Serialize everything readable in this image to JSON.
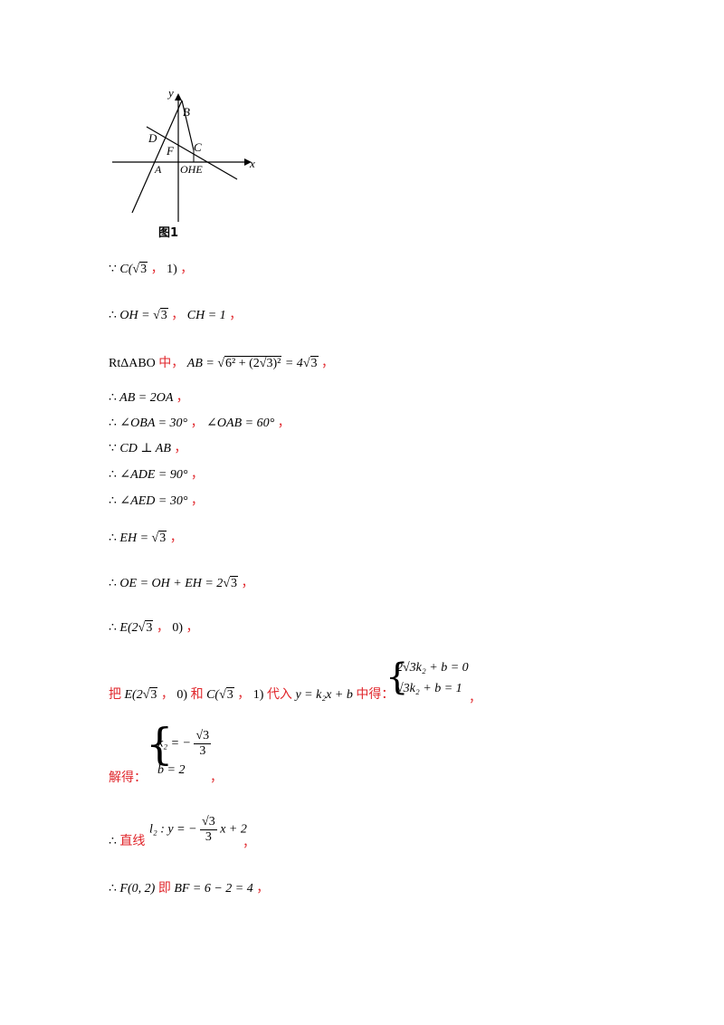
{
  "figure": {
    "caption": "图1",
    "labels": {
      "y": "y",
      "x": "x",
      "B": "B",
      "D": "D",
      "F": "F",
      "C": "C",
      "A": "A",
      "OHE": "OHE"
    }
  },
  "lines": {
    "l1": {
      "because": "∵",
      "expr_a": "C(",
      "sqrt": "3",
      "sep": "，",
      "expr_b": "1)",
      "end": "，"
    },
    "l2": {
      "therefore": "∴",
      "expr_a": "OH = ",
      "sqrt": "3",
      "sep": "，",
      "expr_b": "CH = 1",
      "end": "，"
    },
    "l3": {
      "prefix": "RtΔABO",
      "red": "中，",
      "expr_a": "AB = ",
      "inner": "6² + (2√3)²",
      "expr_b": " = 4",
      "sqrt": "3",
      "end": "，"
    },
    "l4": {
      "therefore": "∴",
      "expr": "AB = 2OA",
      "end": "，"
    },
    "l5": {
      "therefore": "∴",
      "expr_a": "∠OBA = 30°",
      "sep": "，",
      "expr_b": "∠OAB = 60°",
      "end": "，"
    },
    "l6": {
      "because": "∵",
      "expr": "CD ⊥ AB",
      "end": "，"
    },
    "l7": {
      "therefore": "∴",
      "expr": "∠ADE = 90°",
      "end": "，"
    },
    "l8": {
      "therefore": "∴",
      "expr": "∠AED = 30°",
      "end": "，"
    },
    "l9": {
      "therefore": "∴",
      "expr_a": "EH = ",
      "sqrt": "3",
      "end": "，"
    },
    "l10": {
      "therefore": "∴",
      "expr_a": "OE = OH + EH = 2",
      "sqrt": "3",
      "end": "，"
    },
    "l11": {
      "therefore": "∴",
      "expr_a": "E(2",
      "sqrt": "3",
      "sep": "，",
      "expr_b": "0)",
      "end": "，"
    },
    "l12": {
      "red_a": "把",
      "e_a": "E(2",
      "e_sqrt": "3",
      "e_sep": "，",
      "e_b": "0)",
      "red_b": "和",
      "c_a": "C(",
      "c_sqrt": "3",
      "c_sep": "，",
      "c_b": "1)",
      "red_c": "代入",
      "eq": "y = k₂x + b",
      "red_d": "中得：",
      "sys1": "2√3k₂ + b = 0",
      "sys2": "√3k₂ + b = 1",
      "end": "，"
    },
    "l13": {
      "red": "解得：",
      "sys1_a": "k₂ = −",
      "sys1_num": "√3",
      "sys1_den": "3",
      "sys2": "b = 2",
      "end": "，"
    },
    "l14": {
      "therefore": "∴",
      "red": "直线",
      "expr_a": "l₂ : y = −",
      "num": "√3",
      "den": "3",
      "expr_b": "x + 2",
      "end": "，"
    },
    "l15": {
      "therefore": "∴",
      "expr_a": "F(0, 2)",
      "red": "即",
      "expr_b": "BF = 6 − 2 = 4",
      "end": "，"
    }
  }
}
